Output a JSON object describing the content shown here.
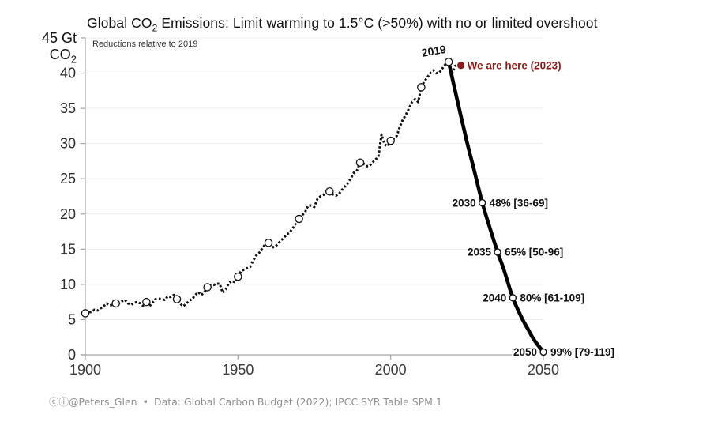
{
  "header": {
    "title_prefix": "Global CO",
    "title_sub": "2",
    "title_suffix": " Emissions: Limit warming to 1.5°C (>50%) with no or limited overshoot",
    "subtitle": "Reductions relative to 2019"
  },
  "y_axis_unit": {
    "line1": "45 Gt",
    "line2_prefix": "CO",
    "line2_sub": "2"
  },
  "footer": {
    "icons": "ⓒⓘ",
    "handle": "@Peters_Glen",
    "separator": "•",
    "source": "Data: Global Carbon Budget (2022); IPCC SYR Table SPM.1"
  },
  "colors": {
    "accent_red": "#8e1b1b",
    "line_black": "#111111",
    "grid": "#ededed",
    "axis": "#a6a6a6",
    "tick_label": "#2b2b2b"
  },
  "chart_data": {
    "type": "line",
    "title": "Global CO2 Emissions: Limit warming to 1.5°C (>50%) with no or limited overshoot",
    "subtitle": "Reductions relative to 2019",
    "ylabel": "Gt CO2",
    "ylim": [
      0,
      45
    ],
    "xlim": [
      1900,
      2050
    ],
    "y_ticks": [
      0,
      5,
      10,
      15,
      20,
      25,
      30,
      35,
      40,
      45
    ],
    "y_tick_labels_shown": [
      0,
      5,
      10,
      15,
      20,
      25,
      30,
      35,
      40
    ],
    "x_ticks": [
      1900,
      1950,
      2000,
      2050
    ],
    "grid": "horizontal",
    "legend": "none",
    "series": [
      {
        "name": "historical_emissions",
        "style": "dashed",
        "points": [
          [
            1900,
            5.9
          ],
          [
            1901,
            6.0
          ],
          [
            1902,
            6.1
          ],
          [
            1903,
            6.4
          ],
          [
            1904,
            6.3
          ],
          [
            1905,
            6.6
          ],
          [
            1906,
            6.9
          ],
          [
            1907,
            7.3
          ],
          [
            1908,
            7.0
          ],
          [
            1909,
            7.1
          ],
          [
            1910,
            7.3
          ],
          [
            1911,
            7.3
          ],
          [
            1912,
            7.6
          ],
          [
            1913,
            7.8
          ],
          [
            1914,
            7.3
          ],
          [
            1915,
            7.1
          ],
          [
            1916,
            7.4
          ],
          [
            1917,
            7.5
          ],
          [
            1918,
            7.3
          ],
          [
            1919,
            6.9
          ],
          [
            1920,
            7.5
          ],
          [
            1921,
            6.9
          ],
          [
            1922,
            7.4
          ],
          [
            1923,
            7.9
          ],
          [
            1924,
            8.0
          ],
          [
            1925,
            7.9
          ],
          [
            1926,
            7.8
          ],
          [
            1927,
            8.3
          ],
          [
            1928,
            8.2
          ],
          [
            1929,
            8.5
          ],
          [
            1930,
            7.9
          ],
          [
            1931,
            7.3
          ],
          [
            1932,
            6.9
          ],
          [
            1933,
            7.2
          ],
          [
            1934,
            7.7
          ],
          [
            1935,
            7.9
          ],
          [
            1936,
            8.5
          ],
          [
            1937,
            8.9
          ],
          [
            1938,
            8.5
          ],
          [
            1939,
            8.9
          ],
          [
            1940,
            9.6
          ],
          [
            1941,
            9.9
          ],
          [
            1942,
            9.9
          ],
          [
            1943,
            10.1
          ],
          [
            1944,
            10.1
          ],
          [
            1945,
            8.8
          ],
          [
            1946,
            9.3
          ],
          [
            1947,
            10.2
          ],
          [
            1948,
            10.5
          ],
          [
            1949,
            10.3
          ],
          [
            1950,
            11.1
          ],
          [
            1951,
            11.9
          ],
          [
            1952,
            12.1
          ],
          [
            1953,
            12.3
          ],
          [
            1954,
            12.5
          ],
          [
            1955,
            13.4
          ],
          [
            1956,
            14.1
          ],
          [
            1957,
            14.5
          ],
          [
            1958,
            15.2
          ],
          [
            1959,
            15.7
          ],
          [
            1960,
            15.9
          ],
          [
            1961,
            15.3
          ],
          [
            1962,
            15.3
          ],
          [
            1963,
            15.7
          ],
          [
            1964,
            16.2
          ],
          [
            1965,
            16.6
          ],
          [
            1966,
            17.1
          ],
          [
            1967,
            17.4
          ],
          [
            1968,
            18.0
          ],
          [
            1969,
            18.7
          ],
          [
            1970,
            19.3
          ],
          [
            1971,
            19.8
          ],
          [
            1972,
            20.3
          ],
          [
            1973,
            21.2
          ],
          [
            1974,
            21.2
          ],
          [
            1975,
            21.0
          ],
          [
            1976,
            22.1
          ],
          [
            1977,
            22.5
          ],
          [
            1978,
            22.7
          ],
          [
            1979,
            23.3
          ],
          [
            1980,
            23.2
          ],
          [
            1981,
            22.8
          ],
          [
            1982,
            22.6
          ],
          [
            1983,
            22.8
          ],
          [
            1984,
            23.4
          ],
          [
            1985,
            23.9
          ],
          [
            1986,
            24.4
          ],
          [
            1987,
            25.1
          ],
          [
            1988,
            25.9
          ],
          [
            1989,
            26.2
          ],
          [
            1990,
            27.3
          ],
          [
            1991,
            27.2
          ],
          [
            1992,
            26.8
          ],
          [
            1993,
            26.8
          ],
          [
            1994,
            27.3
          ],
          [
            1995,
            27.7
          ],
          [
            1996,
            28.2
          ],
          [
            1997,
            31.3
          ],
          [
            1998,
            29.9
          ],
          [
            1999,
            29.6
          ],
          [
            2000,
            30.4
          ],
          [
            2001,
            30.7
          ],
          [
            2002,
            31.1
          ],
          [
            2003,
            32.4
          ],
          [
            2004,
            33.4
          ],
          [
            2005,
            34.1
          ],
          [
            2006,
            35.0
          ],
          [
            2007,
            35.9
          ],
          [
            2008,
            36.3
          ],
          [
            2009,
            35.9
          ],
          [
            2010,
            38.0
          ],
          [
            2011,
            38.8
          ],
          [
            2012,
            39.4
          ],
          [
            2013,
            40.0
          ],
          [
            2014,
            40.4
          ],
          [
            2015,
            40.0
          ],
          [
            2016,
            40.1
          ],
          [
            2017,
            40.7
          ],
          [
            2018,
            41.3
          ],
          [
            2019,
            41.6
          ],
          [
            2020,
            39.7
          ],
          [
            2021,
            41.0
          ],
          [
            2022,
            41.2
          ],
          [
            2023,
            41.1
          ]
        ],
        "decade_markers": [
          1900,
          1910,
          1920,
          1930,
          1940,
          1950,
          1960,
          1970,
          1980,
          1990,
          2000,
          2010,
          2019
        ]
      },
      {
        "name": "pathway_1p5C_no_or_limited_overshoot",
        "style": "solid_thick",
        "points": [
          [
            2019,
            41.6
          ],
          [
            2021,
            37.7
          ],
          [
            2023,
            33.9
          ],
          [
            2025,
            30.2
          ],
          [
            2027,
            26.8
          ],
          [
            2030,
            21.6
          ],
          [
            2032,
            18.7
          ],
          [
            2035,
            14.6
          ],
          [
            2037,
            12.2
          ],
          [
            2040,
            8.1
          ],
          [
            2043,
            5.2
          ],
          [
            2045,
            3.6
          ],
          [
            2047,
            2.1
          ],
          [
            2050,
            0.4
          ]
        ]
      }
    ],
    "milestones": [
      {
        "year": 2030,
        "value": 21.6,
        "label_left": "2030",
        "label_right": "48% [36-69]"
      },
      {
        "year": 2035,
        "value": 14.6,
        "label_left": "2035",
        "label_right": "65% [50-96]"
      },
      {
        "year": 2040,
        "value": 8.1,
        "label_left": "2040",
        "label_right": "80% [61-109]"
      },
      {
        "year": 2050,
        "value": 0.4,
        "label_left": "2050",
        "label_right": "99% [79-119]"
      }
    ],
    "annotations": [
      {
        "id": "peak_label",
        "text": "2019",
        "year": 2019,
        "value": 41.6
      },
      {
        "id": "we_are_here",
        "text": "We are here (2023)",
        "year": 2023,
        "value": 41.1,
        "color": "#8e1b1b"
      }
    ]
  }
}
